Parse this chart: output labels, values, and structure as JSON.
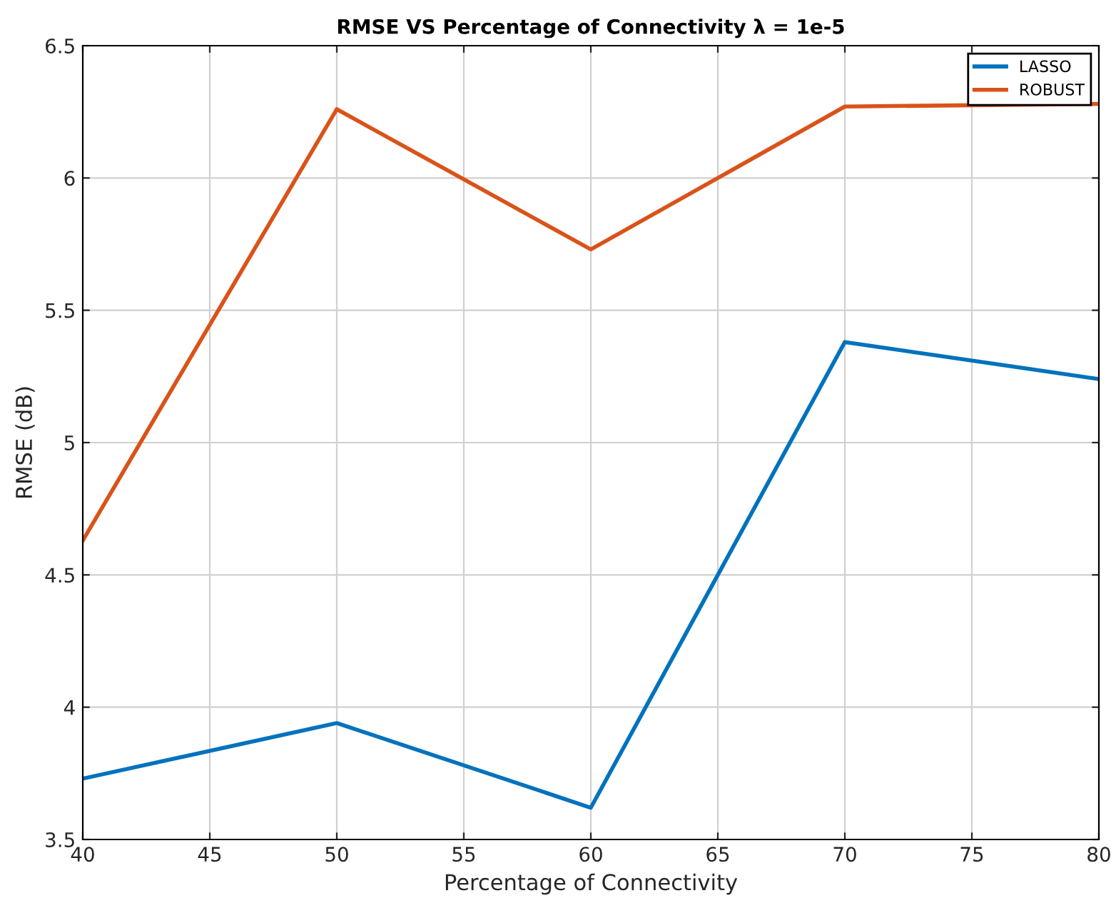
{
  "chart_data": {
    "type": "line",
    "title": "RMSE VS Percentage of Connectivity λ = 1e-5",
    "xlabel": "Percentage of Connectivity",
    "ylabel": "RMSE (dB)",
    "x": [
      40,
      50,
      60,
      70,
      80
    ],
    "series": [
      {
        "name": "LASSO",
        "color": "#0072bd",
        "values": [
          3.73,
          3.94,
          3.62,
          5.38,
          5.24
        ]
      },
      {
        "name": "ROBUST",
        "color": "#d95319",
        "values": [
          4.63,
          6.26,
          5.73,
          6.27,
          6.28
        ]
      }
    ],
    "xlim": [
      40,
      80
    ],
    "xticks": [
      40,
      45,
      50,
      55,
      60,
      65,
      70,
      75,
      80
    ],
    "ylim": [
      3.5,
      6.5
    ],
    "yticks": [
      3.5,
      4,
      4.5,
      5,
      5.5,
      6,
      6.5
    ],
    "grid": true,
    "legend": "top right",
    "marker": "none",
    "line_style": "solid"
  }
}
